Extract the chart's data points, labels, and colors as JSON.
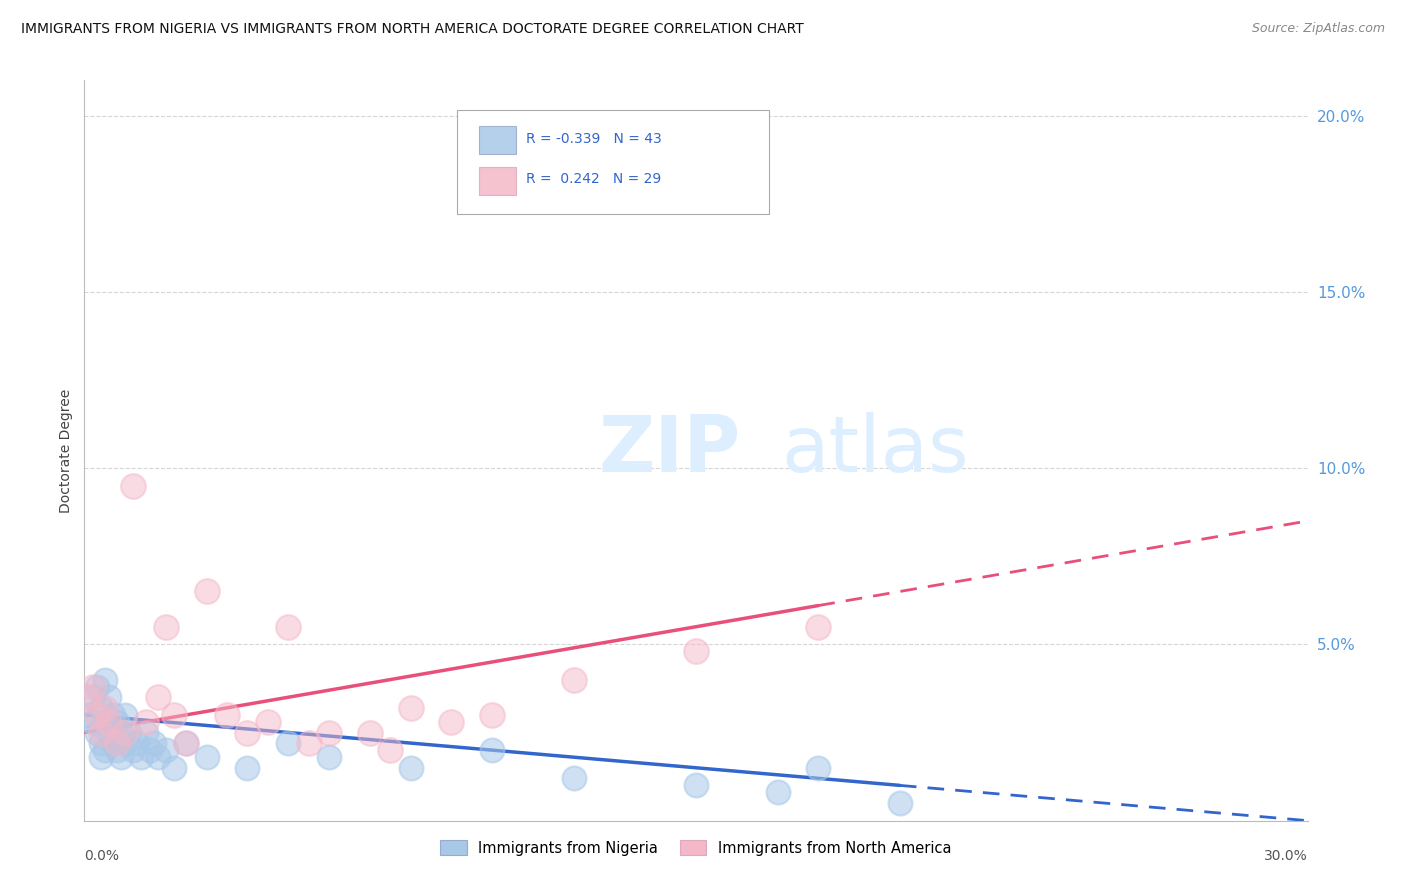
{
  "title": "IMMIGRANTS FROM NIGERIA VS IMMIGRANTS FROM NORTH AMERICA DOCTORATE DEGREE CORRELATION CHART",
  "source": "Source: ZipAtlas.com",
  "ylabel": "Doctorate Degree",
  "xlim": [
    0.0,
    0.3
  ],
  "ylim": [
    0.0,
    0.21
  ],
  "ng_color": "#a8c8e8",
  "na_color": "#f4b8c8",
  "ng_line_color": "#3366cc",
  "na_line_color": "#e8507a",
  "series_nigeria": {
    "x": [
      0.001,
      0.002,
      0.002,
      0.003,
      0.003,
      0.004,
      0.004,
      0.004,
      0.005,
      0.005,
      0.005,
      0.006,
      0.006,
      0.007,
      0.007,
      0.008,
      0.008,
      0.009,
      0.009,
      0.01,
      0.01,
      0.011,
      0.012,
      0.013,
      0.014,
      0.015,
      0.016,
      0.017,
      0.018,
      0.02,
      0.022,
      0.025,
      0.03,
      0.04,
      0.05,
      0.06,
      0.08,
      0.1,
      0.12,
      0.15,
      0.17,
      0.18,
      0.2
    ],
    "y": [
      0.03,
      0.035,
      0.028,
      0.038,
      0.025,
      0.032,
      0.022,
      0.018,
      0.04,
      0.028,
      0.02,
      0.035,
      0.025,
      0.03,
      0.022,
      0.028,
      0.02,
      0.025,
      0.018,
      0.03,
      0.022,
      0.025,
      0.02,
      0.022,
      0.018,
      0.025,
      0.02,
      0.022,
      0.018,
      0.02,
      0.015,
      0.022,
      0.018,
      0.015,
      0.022,
      0.018,
      0.015,
      0.02,
      0.012,
      0.01,
      0.008,
      0.015,
      0.005
    ]
  },
  "series_north_america": {
    "x": [
      0.001,
      0.002,
      0.003,
      0.004,
      0.005,
      0.006,
      0.008,
      0.01,
      0.012,
      0.015,
      0.018,
      0.02,
      0.022,
      0.025,
      0.03,
      0.035,
      0.04,
      0.045,
      0.05,
      0.055,
      0.06,
      0.07,
      0.075,
      0.08,
      0.09,
      0.1,
      0.12,
      0.15,
      0.18
    ],
    "y": [
      0.035,
      0.038,
      0.03,
      0.025,
      0.032,
      0.028,
      0.022,
      0.025,
      0.095,
      0.028,
      0.035,
      0.055,
      0.03,
      0.022,
      0.065,
      0.03,
      0.025,
      0.028,
      0.055,
      0.022,
      0.025,
      0.025,
      0.02,
      0.032,
      0.028,
      0.03,
      0.04,
      0.048,
      0.055
    ]
  },
  "background_color": "#ffffff",
  "grid_color": "#cccccc"
}
